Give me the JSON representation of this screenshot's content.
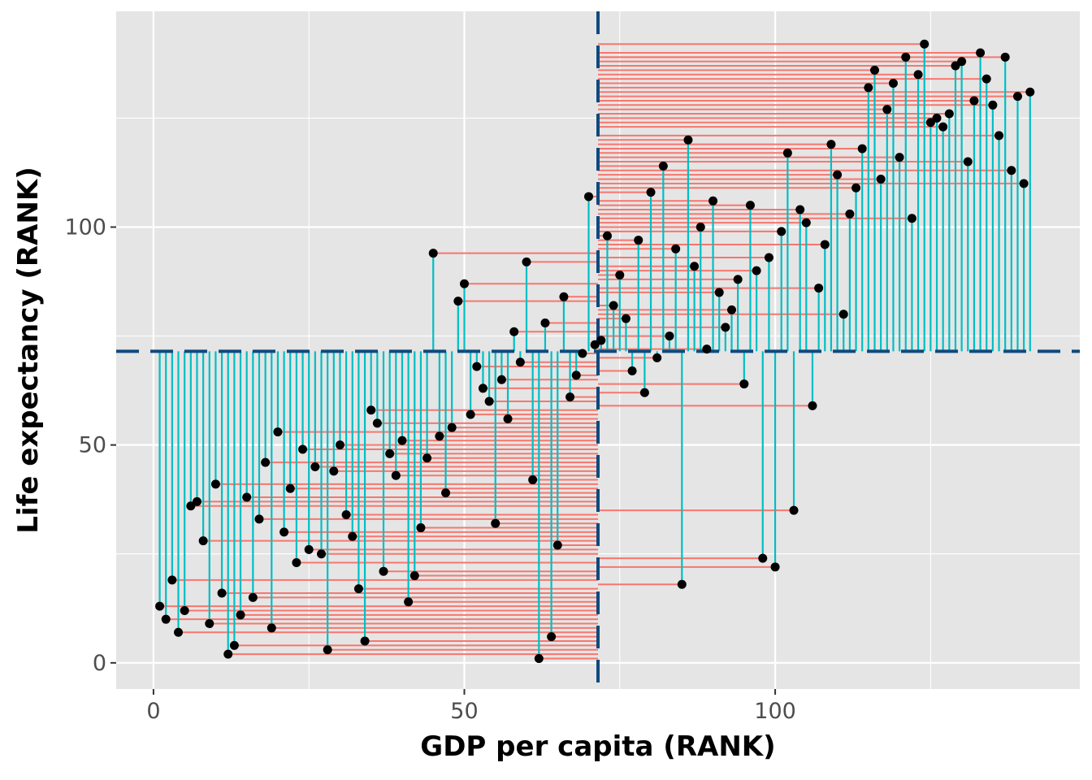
{
  "chart_data": {
    "type": "scatter",
    "title": "",
    "xlabel": "GDP per capita (RANK)",
    "ylabel": "Life expectancy (RANK)",
    "xlim": [
      -6,
      149
    ],
    "ylim": [
      -6,
      149.5
    ],
    "x_ticks": [
      0,
      50,
      100
    ],
    "y_ticks": [
      0,
      50,
      100
    ],
    "x_tick_labels": [
      "0",
      "50",
      "100"
    ],
    "y_tick_labels": [
      "0",
      "50",
      "100"
    ],
    "grid": true,
    "panel_background": "#e5e5e5",
    "grid_color": "#ffffff",
    "reference_lines": {
      "x": 71.5,
      "y": 71.5,
      "color": "#0e4a7e",
      "style": "dashed"
    },
    "segment_colors": {
      "horizontal": "#f8766d",
      "vertical": "#00bfc4"
    },
    "point_color": "#000000",
    "points": [
      {
        "x": 1,
        "y": 13
      },
      {
        "x": 2,
        "y": 10
      },
      {
        "x": 3,
        "y": 19
      },
      {
        "x": 4,
        "y": 7
      },
      {
        "x": 5,
        "y": 12
      },
      {
        "x": 6,
        "y": 36
      },
      {
        "x": 7,
        "y": 37
      },
      {
        "x": 8,
        "y": 28
      },
      {
        "x": 9,
        "y": 9
      },
      {
        "x": 10,
        "y": 41
      },
      {
        "x": 11,
        "y": 16
      },
      {
        "x": 12,
        "y": 2
      },
      {
        "x": 13,
        "y": 4
      },
      {
        "x": 14,
        "y": 11
      },
      {
        "x": 15,
        "y": 38
      },
      {
        "x": 16,
        "y": 15
      },
      {
        "x": 17,
        "y": 33
      },
      {
        "x": 18,
        "y": 46
      },
      {
        "x": 19,
        "y": 8
      },
      {
        "x": 20,
        "y": 53
      },
      {
        "x": 21,
        "y": 30
      },
      {
        "x": 22,
        "y": 40
      },
      {
        "x": 23,
        "y": 23
      },
      {
        "x": 24,
        "y": 49
      },
      {
        "x": 25,
        "y": 26
      },
      {
        "x": 26,
        "y": 45
      },
      {
        "x": 27,
        "y": 25
      },
      {
        "x": 28,
        "y": 3
      },
      {
        "x": 29,
        "y": 44
      },
      {
        "x": 30,
        "y": 50
      },
      {
        "x": 31,
        "y": 34
      },
      {
        "x": 32,
        "y": 29
      },
      {
        "x": 33,
        "y": 17
      },
      {
        "x": 34,
        "y": 5
      },
      {
        "x": 35,
        "y": 58
      },
      {
        "x": 36,
        "y": 55
      },
      {
        "x": 37,
        "y": 21
      },
      {
        "x": 38,
        "y": 48
      },
      {
        "x": 39,
        "y": 43
      },
      {
        "x": 40,
        "y": 51
      },
      {
        "x": 41,
        "y": 14
      },
      {
        "x": 42,
        "y": 20
      },
      {
        "x": 43,
        "y": 31
      },
      {
        "x": 44,
        "y": 47
      },
      {
        "x": 45,
        "y": 94
      },
      {
        "x": 46,
        "y": 52
      },
      {
        "x": 47,
        "y": 39
      },
      {
        "x": 48,
        "y": 54
      },
      {
        "x": 49,
        "y": 83
      },
      {
        "x": 50,
        "y": 87
      },
      {
        "x": 51,
        "y": 57
      },
      {
        "x": 52,
        "y": 68
      },
      {
        "x": 53,
        "y": 63
      },
      {
        "x": 54,
        "y": 60
      },
      {
        "x": 55,
        "y": 32
      },
      {
        "x": 56,
        "y": 65
      },
      {
        "x": 57,
        "y": 56
      },
      {
        "x": 58,
        "y": 76
      },
      {
        "x": 59,
        "y": 69
      },
      {
        "x": 60,
        "y": 92
      },
      {
        "x": 61,
        "y": 42
      },
      {
        "x": 62,
        "y": 1
      },
      {
        "x": 63,
        "y": 78
      },
      {
        "x": 64,
        "y": 6
      },
      {
        "x": 65,
        "y": 27
      },
      {
        "x": 66,
        "y": 84
      },
      {
        "x": 67,
        "y": 61
      },
      {
        "x": 68,
        "y": 66
      },
      {
        "x": 69,
        "y": 71
      },
      {
        "x": 70,
        "y": 107
      },
      {
        "x": 71,
        "y": 73
      },
      {
        "x": 72,
        "y": 74
      },
      {
        "x": 73,
        "y": 98
      },
      {
        "x": 74,
        "y": 82
      },
      {
        "x": 75,
        "y": 89
      },
      {
        "x": 76,
        "y": 79
      },
      {
        "x": 77,
        "y": 67
      },
      {
        "x": 78,
        "y": 97
      },
      {
        "x": 79,
        "y": 62
      },
      {
        "x": 80,
        "y": 108
      },
      {
        "x": 81,
        "y": 70
      },
      {
        "x": 82,
        "y": 114
      },
      {
        "x": 83,
        "y": 75
      },
      {
        "x": 84,
        "y": 95
      },
      {
        "x": 85,
        "y": 18
      },
      {
        "x": 86,
        "y": 120
      },
      {
        "x": 87,
        "y": 91
      },
      {
        "x": 88,
        "y": 100
      },
      {
        "x": 89,
        "y": 72
      },
      {
        "x": 90,
        "y": 106
      },
      {
        "x": 91,
        "y": 85
      },
      {
        "x": 92,
        "y": 77
      },
      {
        "x": 93,
        "y": 81
      },
      {
        "x": 94,
        "y": 88
      },
      {
        "x": 95,
        "y": 64
      },
      {
        "x": 96,
        "y": 105
      },
      {
        "x": 97,
        "y": 90
      },
      {
        "x": 98,
        "y": 24
      },
      {
        "x": 99,
        "y": 93
      },
      {
        "x": 100,
        "y": 22
      },
      {
        "x": 101,
        "y": 99
      },
      {
        "x": 102,
        "y": 117
      },
      {
        "x": 103,
        "y": 35
      },
      {
        "x": 104,
        "y": 104
      },
      {
        "x": 105,
        "y": 101
      },
      {
        "x": 106,
        "y": 59
      },
      {
        "x": 107,
        "y": 86
      },
      {
        "x": 108,
        "y": 96
      },
      {
        "x": 109,
        "y": 119
      },
      {
        "x": 110,
        "y": 112
      },
      {
        "x": 111,
        "y": 80
      },
      {
        "x": 112,
        "y": 103
      },
      {
        "x": 113,
        "y": 109
      },
      {
        "x": 114,
        "y": 118
      },
      {
        "x": 115,
        "y": 132
      },
      {
        "x": 116,
        "y": 136
      },
      {
        "x": 117,
        "y": 111
      },
      {
        "x": 118,
        "y": 127
      },
      {
        "x": 119,
        "y": 133
      },
      {
        "x": 120,
        "y": 116
      },
      {
        "x": 121,
        "y": 139
      },
      {
        "x": 122,
        "y": 102
      },
      {
        "x": 123,
        "y": 135
      },
      {
        "x": 124,
        "y": 142
      },
      {
        "x": 125,
        "y": 124
      },
      {
        "x": 126,
        "y": 125
      },
      {
        "x": 127,
        "y": 123
      },
      {
        "x": 128,
        "y": 126
      },
      {
        "x": 129,
        "y": 137
      },
      {
        "x": 130,
        "y": 138
      },
      {
        "x": 131,
        "y": 115
      },
      {
        "x": 132,
        "y": 129
      },
      {
        "x": 133,
        "y": 140
      },
      {
        "x": 134,
        "y": 134
      },
      {
        "x": 135,
        "y": 128
      },
      {
        "x": 136,
        "y": 121
      },
      {
        "x": 137,
        "y": 139
      },
      {
        "x": 138,
        "y": 113
      },
      {
        "x": 139,
        "y": 130
      },
      {
        "x": 140,
        "y": 110
      },
      {
        "x": 141,
        "y": 131
      }
    ]
  }
}
